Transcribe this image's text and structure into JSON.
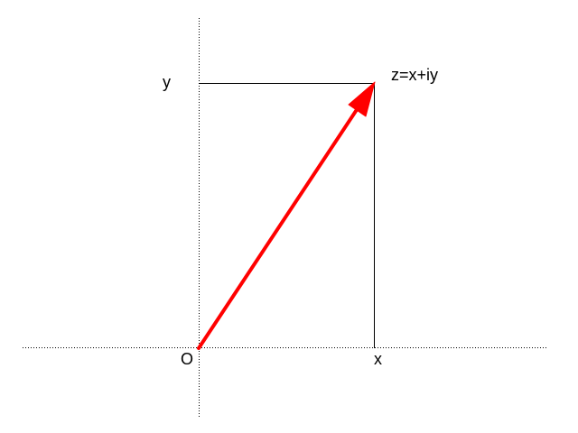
{
  "diagram": {
    "labels": {
      "point": "z=x+iy",
      "y_axis_value": "y",
      "x_axis_value": "x",
      "origin": "O"
    },
    "colors": {
      "vector": "#ff0000",
      "axes": "#000000",
      "projection": "#000000"
    }
  }
}
